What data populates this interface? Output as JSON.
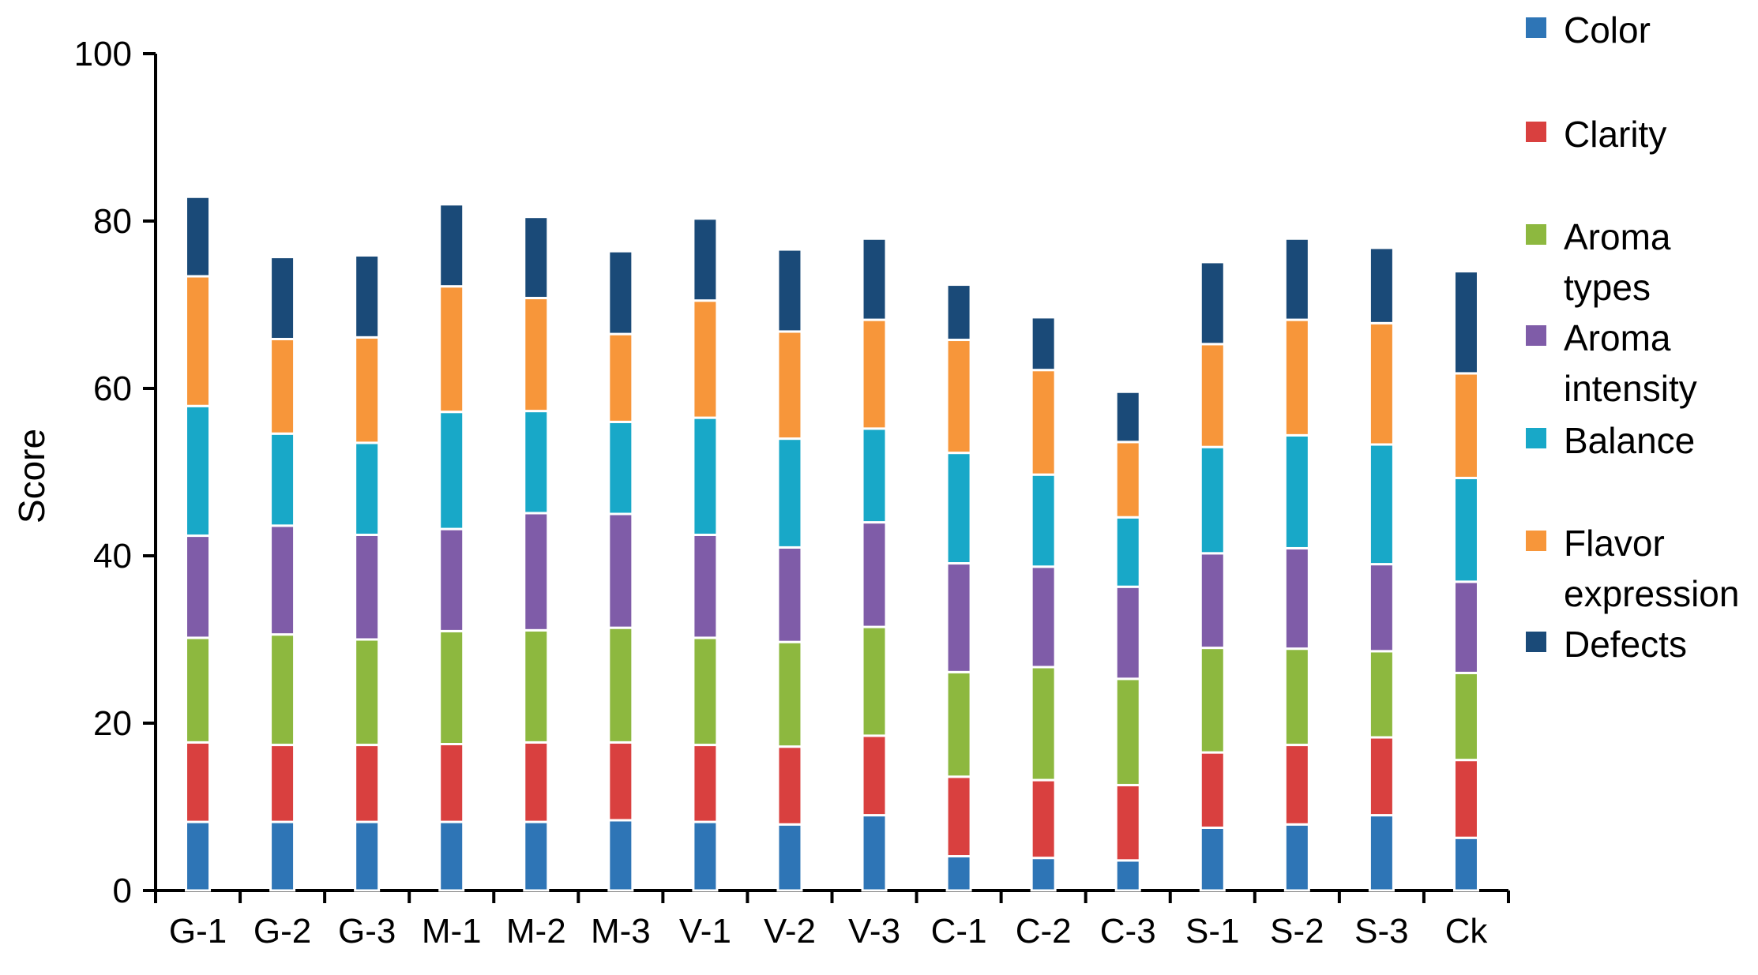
{
  "chart_data": {
    "type": "bar",
    "stacked": true,
    "title": "",
    "xlabel": "",
    "ylabel": "Score",
    "ylim": [
      0,
      100
    ],
    "yticks": [
      0,
      20,
      40,
      60,
      80,
      100
    ],
    "legend_position": "right",
    "categories": [
      "G-1",
      "G-2",
      "G-3",
      "M-1",
      "M-2",
      "M-3",
      "V-1",
      "V-2",
      "V-3",
      "C-1",
      "C-2",
      "C-3",
      "S-1",
      "S-2",
      "S-3",
      "Ck"
    ],
    "series": [
      {
        "name": "Color",
        "legend_lines": [
          "Color"
        ],
        "color": "#2E75B6",
        "values": [
          8.2,
          8.2,
          8.2,
          8.2,
          8.2,
          8.4,
          8.2,
          7.9,
          9.0,
          4.1,
          3.9,
          3.6,
          7.5,
          7.9,
          9.0,
          6.3
        ]
      },
      {
        "name": "Clarity",
        "legend_lines": [
          "Clarity"
        ],
        "color": "#D9403F",
        "values": [
          9.5,
          9.2,
          9.2,
          9.3,
          9.5,
          9.3,
          9.2,
          9.3,
          9.5,
          9.5,
          9.3,
          9.0,
          9.0,
          9.5,
          9.3,
          9.3
        ]
      },
      {
        "name": "Aroma types",
        "legend_lines": [
          "Aroma",
          "types"
        ],
        "color": "#8DB83F",
        "values": [
          12.5,
          13.2,
          12.6,
          13.5,
          13.4,
          13.7,
          12.8,
          12.5,
          13.0,
          12.5,
          13.5,
          12.7,
          12.5,
          11.5,
          10.3,
          10.4
        ]
      },
      {
        "name": "Aroma intensity",
        "legend_lines": [
          "Aroma",
          "intensity"
        ],
        "color": "#7F5CA8",
        "values": [
          12.2,
          13.0,
          12.5,
          12.2,
          14.0,
          13.6,
          12.3,
          11.3,
          12.5,
          13.0,
          12.0,
          11.0,
          11.3,
          12.0,
          10.4,
          10.9
        ]
      },
      {
        "name": "Balance",
        "legend_lines": [
          "Balance"
        ],
        "color": "#18A8C8",
        "values": [
          15.5,
          11.0,
          11.0,
          14.0,
          12.2,
          11.0,
          14.0,
          13.0,
          11.2,
          13.2,
          11.0,
          8.3,
          12.7,
          13.5,
          14.3,
          12.4
        ]
      },
      {
        "name": "Flavor expression",
        "legend_lines": [
          "Flavor",
          "expression"
        ],
        "color": "#F7963A",
        "values": [
          15.5,
          11.3,
          12.6,
          15.0,
          13.5,
          10.5,
          14.0,
          12.8,
          13.0,
          13.5,
          12.5,
          9.0,
          12.3,
          13.8,
          14.5,
          12.5
        ]
      },
      {
        "name": "Defects",
        "legend_lines": [
          "Defects"
        ],
        "color": "#1A4A78",
        "values": [
          9.5,
          9.8,
          9.8,
          9.8,
          9.7,
          9.9,
          9.8,
          9.8,
          9.7,
          6.6,
          6.3,
          6.0,
          9.8,
          9.7,
          9.0,
          12.2
        ]
      }
    ]
  }
}
